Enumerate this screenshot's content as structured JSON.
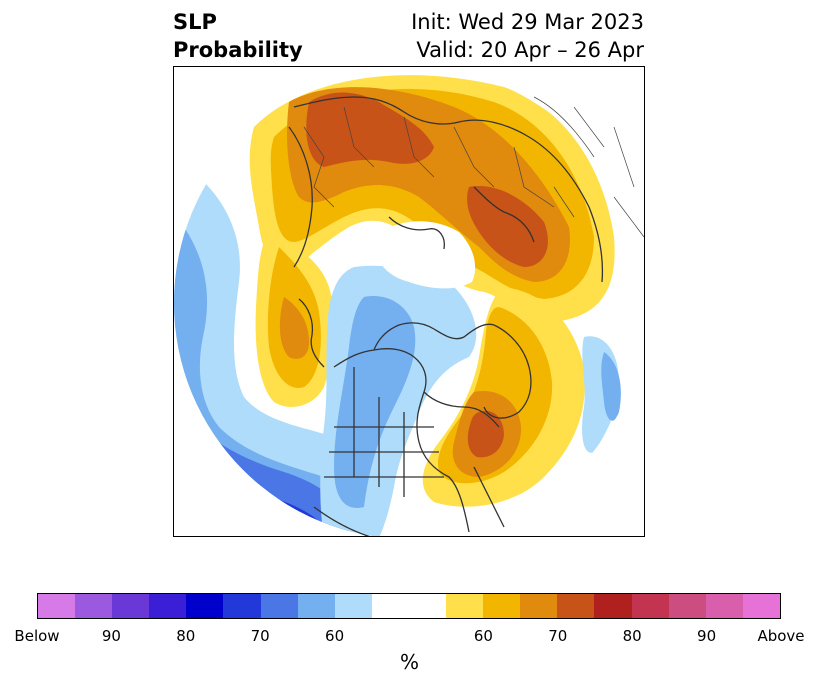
{
  "header": {
    "title_line1": "SLP",
    "title_line2": "Probability",
    "init_text": "Init: Wed 29 Mar 2023",
    "valid_text": "Valid: 20 Apr – 26 Apr"
  },
  "colorbar": {
    "colors": [
      "#d67ae8",
      "#9b59e0",
      "#6b38d8",
      "#3b1fd6",
      "#0000cc",
      "#2238d8",
      "#4a76e6",
      "#74aff0",
      "#aedcfa",
      "#ffffff",
      "#ffffff",
      "#ffe04a",
      "#f2b600",
      "#e08a0e",
      "#c85318",
      "#b0201e",
      "#c23450",
      "#cc4e80",
      "#d95eac",
      "#e672d8"
    ],
    "labels": [
      "Below",
      "90",
      "80",
      "70",
      "60",
      "60",
      "70",
      "80",
      "90",
      "Above"
    ],
    "unit": "%"
  }
}
